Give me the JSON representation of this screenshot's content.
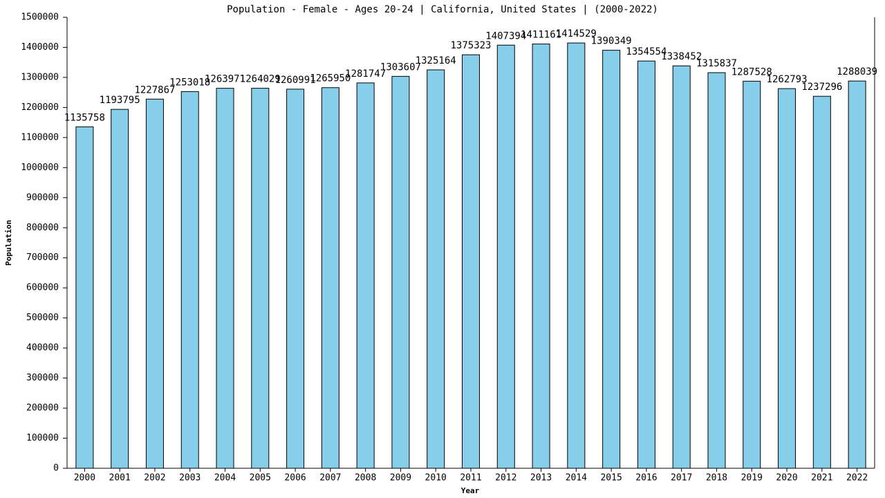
{
  "chart_data": {
    "type": "bar",
    "title": "Population - Female - Ages 20-24 | California, United States |  (2000-2022)",
    "x_label": "Year",
    "y_label": "Population",
    "categories": [
      "2000",
      "2001",
      "2002",
      "2003",
      "2004",
      "2005",
      "2006",
      "2007",
      "2008",
      "2009",
      "2010",
      "2011",
      "2012",
      "2013",
      "2014",
      "2015",
      "2016",
      "2017",
      "2018",
      "2019",
      "2020",
      "2021",
      "2022"
    ],
    "values": [
      1135758,
      1193795,
      1227867,
      1253018,
      1263971,
      1264029,
      1260991,
      1265950,
      1281747,
      1303607,
      1325164,
      1375323,
      1407394,
      1411161,
      1414529,
      1390349,
      1354554,
      1338452,
      1315837,
      1287528,
      1262793,
      1237296,
      1288039
    ],
    "color": "#87ceeb",
    "ylim": [
      0,
      1500000
    ],
    "yticks": [
      0,
      100000,
      200000,
      300000,
      400000,
      500000,
      600000,
      700000,
      800000,
      900000,
      1000000,
      1100000,
      1200000,
      1300000,
      1400000,
      1500000
    ],
    "grid": false
  }
}
